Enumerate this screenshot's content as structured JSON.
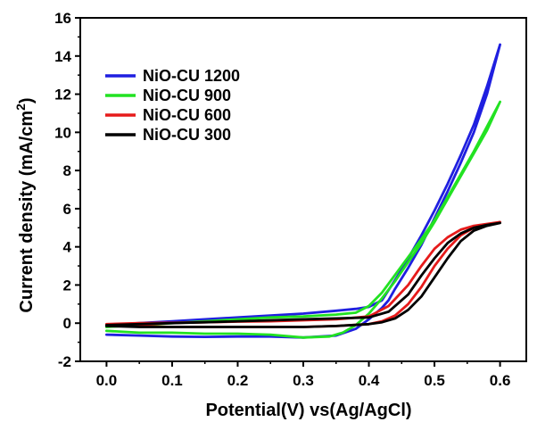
{
  "chart_data": {
    "type": "line",
    "xlabel": "Potential(V) vs(Ag/AgCl)",
    "ylabel_main": "Current density (mA/cm",
    "ylabel_sup": "2",
    "ylabel_close": ")",
    "xlim": [
      -0.04,
      0.64
    ],
    "ylim": [
      -2,
      16
    ],
    "xticks": [
      0.0,
      0.1,
      0.2,
      0.3,
      0.4,
      0.5,
      0.6
    ],
    "xtick_labels": [
      "0.0",
      "0.1",
      "0.2",
      "0.3",
      "0.4",
      "0.5",
      "0.6"
    ],
    "yticks": [
      -2,
      0,
      2,
      4,
      6,
      8,
      10,
      12,
      14,
      16
    ],
    "ytick_labels": [
      "-2",
      "0",
      "2",
      "4",
      "6",
      "8",
      "10",
      "12",
      "14",
      "16"
    ],
    "grid": false,
    "legend_position": "top-left",
    "series": [
      {
        "name": "NiO-CU 1200",
        "color": "#1f1fe0",
        "x": [
          0.0,
          0.05,
          0.1,
          0.15,
          0.2,
          0.25,
          0.3,
          0.35,
          0.38,
          0.4,
          0.42,
          0.45,
          0.48,
          0.5,
          0.52,
          0.54,
          0.56,
          0.58,
          0.6,
          0.58,
          0.56,
          0.54,
          0.52,
          0.5,
          0.48,
          0.46,
          0.44,
          0.43,
          0.42,
          0.4,
          0.38,
          0.35,
          0.3,
          0.25,
          0.2,
          0.15,
          0.1,
          0.05,
          0.0
        ],
        "y": [
          -0.1,
          0.0,
          0.1,
          0.2,
          0.3,
          0.4,
          0.5,
          0.65,
          0.75,
          0.85,
          1.2,
          2.8,
          4.6,
          5.9,
          7.3,
          8.8,
          10.4,
          12.4,
          14.6,
          12.0,
          10.0,
          8.4,
          6.9,
          5.5,
          4.1,
          2.9,
          1.8,
          1.2,
          0.8,
          0.2,
          -0.3,
          -0.65,
          -0.75,
          -0.7,
          -0.7,
          -0.72,
          -0.7,
          -0.65,
          -0.6
        ]
      },
      {
        "name": "NiO-CU 900",
        "color": "#22e222",
        "x": [
          0.0,
          0.05,
          0.1,
          0.15,
          0.2,
          0.25,
          0.3,
          0.35,
          0.38,
          0.4,
          0.42,
          0.45,
          0.48,
          0.5,
          0.52,
          0.54,
          0.56,
          0.58,
          0.6,
          0.58,
          0.56,
          0.54,
          0.52,
          0.5,
          0.48,
          0.46,
          0.44,
          0.42,
          0.4,
          0.38,
          0.36,
          0.34,
          0.3,
          0.25,
          0.2,
          0.15,
          0.1,
          0.05,
          0.0
        ],
        "y": [
          -0.2,
          -0.1,
          0.0,
          0.1,
          0.2,
          0.3,
          0.35,
          0.45,
          0.55,
          0.9,
          1.6,
          3.0,
          4.4,
          5.4,
          6.6,
          7.8,
          9.0,
          10.3,
          11.6,
          10.1,
          8.9,
          7.7,
          6.5,
          5.3,
          4.2,
          3.2,
          2.2,
          1.3,
          0.5,
          -0.1,
          -0.5,
          -0.7,
          -0.75,
          -0.6,
          -0.55,
          -0.55,
          -0.5,
          -0.5,
          -0.4
        ]
      },
      {
        "name": "NiO-CU 600",
        "color": "#e61b1b",
        "x": [
          0.0,
          0.05,
          0.1,
          0.15,
          0.2,
          0.25,
          0.3,
          0.35,
          0.4,
          0.43,
          0.46,
          0.48,
          0.5,
          0.52,
          0.54,
          0.56,
          0.58,
          0.6,
          0.58,
          0.56,
          0.54,
          0.52,
          0.5,
          0.48,
          0.46,
          0.44,
          0.42,
          0.4,
          0.35,
          0.3,
          0.25,
          0.2,
          0.15,
          0.1,
          0.05,
          0.0
        ],
        "y": [
          -0.05,
          0.0,
          0.02,
          0.05,
          0.08,
          0.1,
          0.15,
          0.2,
          0.35,
          0.9,
          2.0,
          3.0,
          3.9,
          4.5,
          4.9,
          5.1,
          5.2,
          5.3,
          5.15,
          5.0,
          4.6,
          3.9,
          3.0,
          1.9,
          1.0,
          0.4,
          0.1,
          -0.05,
          -0.15,
          -0.2,
          -0.2,
          -0.2,
          -0.2,
          -0.2,
          -0.15,
          -0.1
        ]
      },
      {
        "name": "NiO-CU 300",
        "color": "#000000",
        "x": [
          0.0,
          0.05,
          0.1,
          0.15,
          0.2,
          0.25,
          0.3,
          0.35,
          0.4,
          0.43,
          0.46,
          0.48,
          0.5,
          0.52,
          0.54,
          0.56,
          0.58,
          0.6,
          0.58,
          0.56,
          0.54,
          0.52,
          0.5,
          0.48,
          0.46,
          0.44,
          0.42,
          0.4,
          0.35,
          0.3,
          0.25,
          0.2,
          0.15,
          0.1,
          0.05,
          0.0
        ],
        "y": [
          -0.1,
          -0.05,
          0.0,
          0.05,
          0.1,
          0.15,
          0.2,
          0.25,
          0.3,
          0.6,
          1.5,
          2.5,
          3.4,
          4.2,
          4.7,
          5.0,
          5.15,
          5.25,
          5.1,
          4.85,
          4.3,
          3.4,
          2.4,
          1.4,
          0.7,
          0.25,
          0.05,
          -0.05,
          -0.15,
          -0.2,
          -0.2,
          -0.2,
          -0.2,
          -0.2,
          -0.2,
          -0.15
        ]
      }
    ]
  }
}
